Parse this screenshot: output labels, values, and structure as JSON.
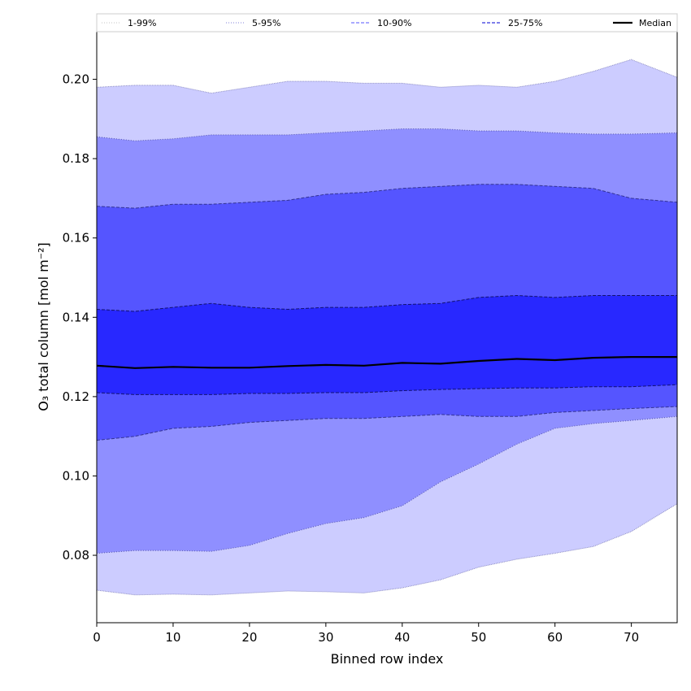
{
  "chart_data": {
    "type": "area",
    "title": "",
    "xlabel": "Binned row index",
    "ylabel": "O₃ total column [mol m⁻²]",
    "xlim": [
      0,
      76
    ],
    "ylim": [
      0.063,
      0.212
    ],
    "grid": false,
    "legend_position": "top",
    "x_ticks": [
      0,
      10,
      20,
      30,
      40,
      50,
      60,
      70
    ],
    "y_ticks": [
      0.08,
      0.1,
      0.12,
      0.14,
      0.16,
      0.18,
      0.2
    ],
    "x_tick_labels": [
      "0",
      "10",
      "20",
      "30",
      "40",
      "50",
      "60",
      "70"
    ],
    "y_tick_labels": [
      "0.08",
      "0.10",
      "0.12",
      "0.14",
      "0.16",
      "0.18",
      "0.20"
    ],
    "x_knots": [
      0,
      5,
      10,
      15,
      20,
      25,
      30,
      35,
      40,
      45,
      50,
      55,
      60,
      65,
      70,
      76
    ],
    "bands": [
      {
        "name": "1-99%",
        "color": "#ccccff",
        "edge": "#6666aa",
        "lower": [
          0.0712,
          0.07,
          0.0702,
          0.07,
          0.0705,
          0.071,
          0.0708,
          0.0705,
          0.0718,
          0.0738,
          0.077,
          0.079,
          0.0805,
          0.0822,
          0.086,
          0.093
        ],
        "upper": [
          0.198,
          0.1985,
          0.1985,
          0.1965,
          0.198,
          0.1995,
          0.1995,
          0.199,
          0.199,
          0.198,
          0.1985,
          0.198,
          0.1995,
          0.202,
          0.205,
          0.2005
        ]
      },
      {
        "name": "5-95%",
        "color": "#8f8fff",
        "edge": "#333388",
        "lower": [
          0.0805,
          0.0812,
          0.0812,
          0.081,
          0.0825,
          0.0855,
          0.088,
          0.0895,
          0.0925,
          0.0985,
          0.103,
          0.108,
          0.112,
          0.1132,
          0.114,
          0.115
        ],
        "upper": [
          0.1855,
          0.1845,
          0.185,
          0.186,
          0.186,
          0.186,
          0.1865,
          0.187,
          0.1875,
          0.1875,
          0.187,
          0.187,
          0.1865,
          0.1862,
          0.1862,
          0.1865
        ]
      },
      {
        "name": "10-90%",
        "color": "#5555ff",
        "edge": "#1a1a66",
        "lower": [
          0.109,
          0.11,
          0.112,
          0.1125,
          0.1135,
          0.114,
          0.1145,
          0.1145,
          0.115,
          0.1155,
          0.115,
          0.115,
          0.116,
          0.1165,
          0.117,
          0.1175
        ],
        "upper": [
          0.168,
          0.1675,
          0.1685,
          0.1685,
          0.169,
          0.1695,
          0.171,
          0.1715,
          0.1725,
          0.173,
          0.1735,
          0.1735,
          0.173,
          0.1725,
          0.17,
          0.169
        ]
      },
      {
        "name": "25-75%",
        "color": "#2828ff",
        "edge": "#000033",
        "lower": [
          0.121,
          0.1205,
          0.1205,
          0.1205,
          0.1208,
          0.1208,
          0.121,
          0.121,
          0.1215,
          0.1218,
          0.122,
          0.1222,
          0.1222,
          0.1225,
          0.1225,
          0.123
        ],
        "upper": [
          0.142,
          0.1415,
          0.1425,
          0.1435,
          0.1425,
          0.142,
          0.1425,
          0.1425,
          0.1432,
          0.1435,
          0.145,
          0.1455,
          0.145,
          0.1455,
          0.1455,
          0.1455
        ]
      }
    ],
    "median": {
      "name": "Median",
      "color": "#000000",
      "values": [
        0.1278,
        0.1272,
        0.1275,
        0.1273,
        0.1273,
        0.1277,
        0.128,
        0.1278,
        0.1285,
        0.1283,
        0.129,
        0.1295,
        0.1292,
        0.1298,
        0.13,
        0.13
      ]
    },
    "legend": [
      {
        "label": "1-99%",
        "style": "dotted",
        "color": "#cfcfcf"
      },
      {
        "label": "5-95%",
        "style": "dotted",
        "color": "#9a9ae0"
      },
      {
        "label": "10-90%",
        "style": "dashed",
        "color": "#7777ff"
      },
      {
        "label": "25-75%",
        "style": "dashed",
        "color": "#3333dd"
      },
      {
        "label": "Median",
        "style": "solid",
        "color": "#000000"
      }
    ]
  }
}
